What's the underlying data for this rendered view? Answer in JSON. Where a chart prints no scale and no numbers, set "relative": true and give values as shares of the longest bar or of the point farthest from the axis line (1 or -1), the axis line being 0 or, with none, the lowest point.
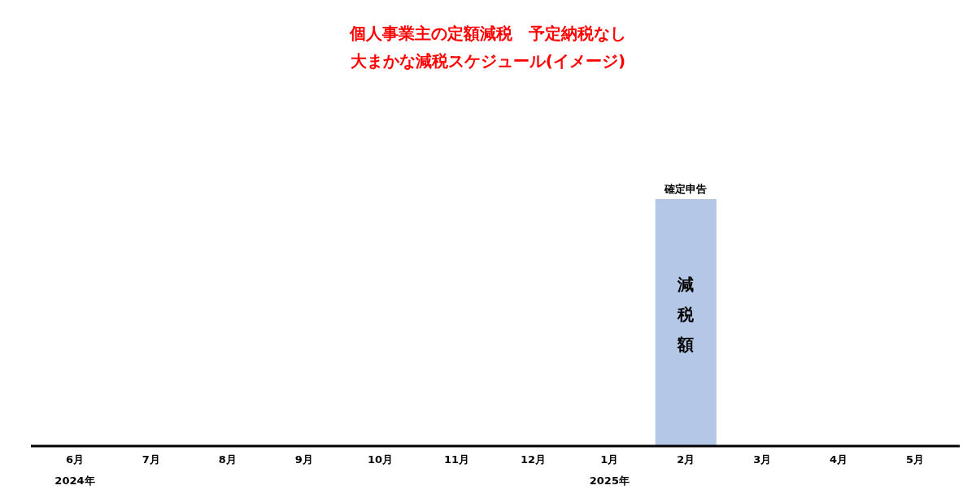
{
  "chart_data": {
    "type": "bar",
    "relative": true,
    "title": "個人事業主の定額減税　予定納税なし",
    "subtitle": "大まかな減税スケジュール(イメージ)",
    "categories": [
      "6月",
      "7月",
      "8月",
      "9月",
      "10月",
      "11月",
      "12月",
      "1月",
      "2月",
      "3月",
      "4月",
      "5月"
    ],
    "values": [
      null,
      null,
      null,
      null,
      null,
      null,
      null,
      null,
      1,
      null,
      null,
      null
    ],
    "color": "#b4c7e7",
    "annotations": [
      {
        "text": "確定申告",
        "x": "2月",
        "y": 1
      },
      "減税額",
      "2024年",
      "2025年"
    ]
  }
}
